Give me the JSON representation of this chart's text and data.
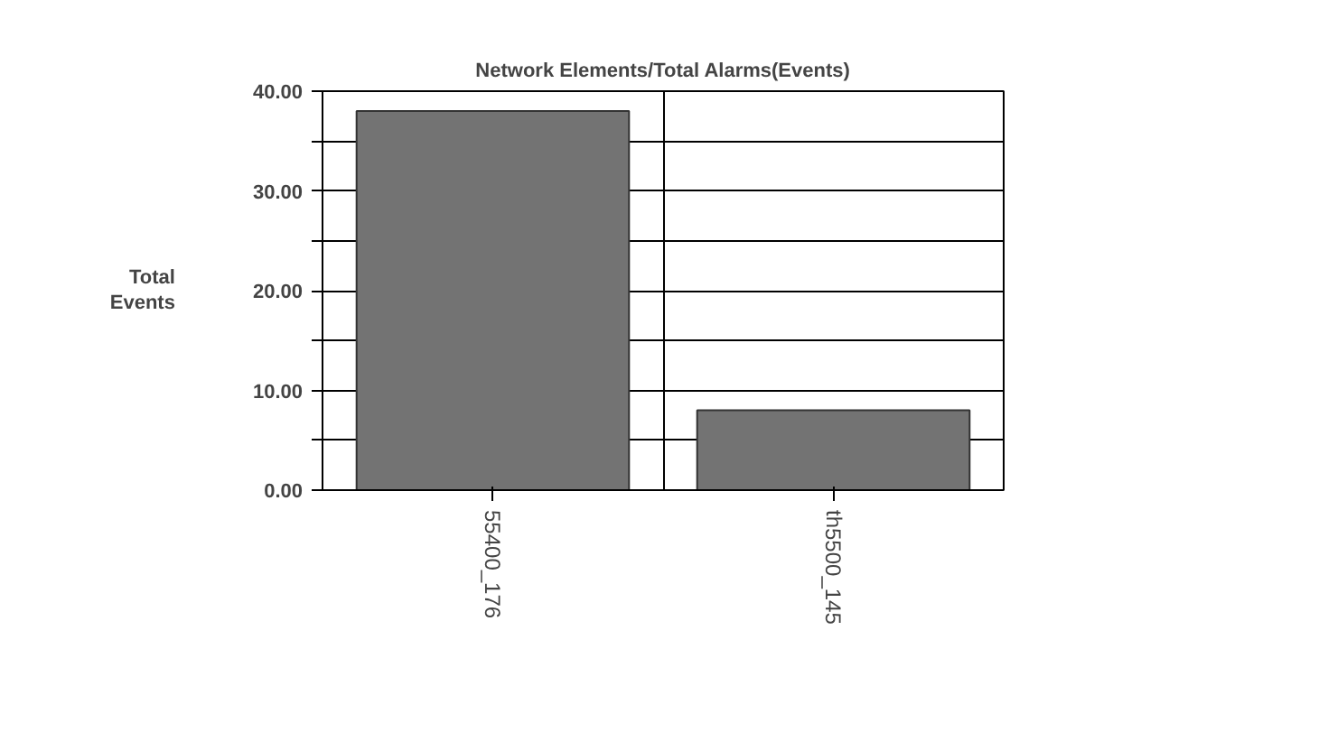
{
  "chart_data": {
    "type": "bar",
    "title": "Network Elements/Total Alarms(Events)",
    "ylabel": "Total\nEvents",
    "categories": [
      "55400_176",
      "th5500_145"
    ],
    "values": [
      38,
      8
    ],
    "color": "#737373",
    "ylim": [
      0,
      40
    ],
    "yticks": [
      {
        "value": 0,
        "label": "0.00"
      },
      {
        "value": 5,
        "label": null
      },
      {
        "value": 10,
        "label": "10.00"
      },
      {
        "value": 15,
        "label": null
      },
      {
        "value": 20,
        "label": "20.00"
      },
      {
        "value": 25,
        "label": null
      },
      {
        "value": 30,
        "label": "30.00"
      },
      {
        "value": 35,
        "label": null
      },
      {
        "value": 40,
        "label": "40.00"
      }
    ],
    "grid": true
  }
}
